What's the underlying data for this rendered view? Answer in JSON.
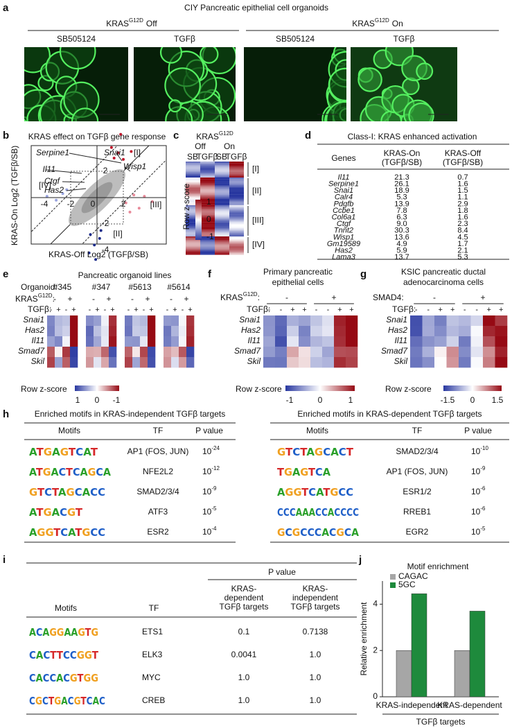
{
  "panel_labels": [
    "a",
    "b",
    "c",
    "d",
    "e",
    "f",
    "g",
    "h",
    "i",
    "j"
  ],
  "a": {
    "title": "CIY Pancreatic epithelial cell organoids",
    "groups": [
      {
        "name": "KRAS",
        "sup": "G12D",
        "state": "Off"
      },
      {
        "name": "KRAS",
        "sup": "G12D",
        "state": "On"
      }
    ],
    "conditions": [
      "SB505124",
      "TGFβ",
      "SB505124",
      "TGFβ"
    ]
  },
  "b": {
    "title": "KRAS effect on TGFβ gene response",
    "ylabel": "KRAS-On Log2 (TGFβ/SB)",
    "xlabel": "KRAS-Off Log2 (TGFβ/SB)",
    "xticks": [
      "-4",
      "-2",
      "0",
      "2"
    ],
    "yticks": [
      "2",
      "-2",
      "-4"
    ],
    "genes": [
      "Serpine1",
      "Snai1",
      "Wisp1",
      "Il11",
      "Ctgf",
      "Has2"
    ],
    "quadrants": [
      "[I]",
      "[II]",
      "[III]",
      "[IV]"
    ]
  },
  "c": {
    "header": {
      "name": "KRAS",
      "sup": "G12D"
    },
    "groups": [
      "Off",
      "On"
    ],
    "columns": [
      "SB",
      "TGFβ",
      "SB",
      "TGFβ"
    ],
    "clusters": [
      "[I]",
      "[II]",
      "[III]",
      "[IV]"
    ],
    "colorbar_label": "Row z-score",
    "colorbar_ticks": [
      "1",
      "0",
      "-1"
    ]
  },
  "d": {
    "title": "Class-I: KRAS enhanced activation",
    "headers": [
      [
        "Genes"
      ],
      [
        "KRAS-On",
        "(TGFβ/SB)"
      ],
      [
        "KRAS-Off",
        "(TGFβ/SB)"
      ]
    ],
    "rows": [
      [
        "Il11",
        "21.3",
        "0.7"
      ],
      [
        "Serpine1",
        "26.1",
        "1.6"
      ],
      [
        "Snai1",
        "18.9",
        "1.5"
      ],
      [
        "Calr4",
        "5.3",
        "1.1"
      ],
      [
        "Pdgfb",
        "13.9",
        "2.9"
      ],
      [
        "Ccbe1",
        "7.8",
        "1.8"
      ],
      [
        "Col6a1",
        "6.3",
        "1.6"
      ],
      [
        "Ctgf",
        "9.0",
        "2.3"
      ],
      [
        "Tnnt2",
        "30.3",
        "8.4"
      ],
      [
        "Wisp1",
        "13.6",
        "4.5"
      ],
      [
        "Gm19589",
        "4.9",
        "1.7"
      ],
      [
        "Has2",
        "5.9",
        "2.1"
      ],
      [
        "Lama3",
        "13.7",
        "5.3"
      ]
    ]
  },
  "e": {
    "title": "Pancreatic organoid lines",
    "organoid_label": "Organoid:",
    "organoids": [
      "#345",
      "#347",
      "#5613",
      "#5614"
    ],
    "kras_label": {
      "name": "KRAS",
      "sup": "G12D",
      "suffix": ":"
    },
    "kras_signs": [
      "-",
      "+",
      "-",
      "+",
      "-",
      "+",
      "-",
      "+"
    ],
    "tgfb_label": "TGFβ:",
    "tgfb_signs": [
      "-",
      "+",
      "-",
      "+",
      "-",
      "+",
      "-",
      "+",
      "-",
      "+",
      "-",
      "+",
      "-",
      "+",
      "-",
      "+"
    ],
    "genes": [
      "Snai1",
      "Has2",
      "Il11",
      "Smad7",
      "Skil"
    ],
    "colorbar_label": "Row z-score",
    "colorbar_ticks": [
      "1",
      "0",
      "-1"
    ]
  },
  "f": {
    "title": [
      "Primary pancreatic",
      "epithelial cells"
    ],
    "group_label": {
      "name": "KRAS",
      "sup": "G12D",
      "suffix": ":"
    },
    "group_signs": [
      "-",
      "+"
    ],
    "tgfb_label": "TGFβ:",
    "tgfb_signs": [
      "-",
      "-",
      "+",
      "+",
      "-",
      "-",
      "+",
      "+"
    ],
    "genes": [
      "Snai1",
      "Has2",
      "Il11",
      "Smad7",
      "Skil"
    ],
    "colorbar_label": "Row z-score",
    "colorbar_ticks": [
      "-1",
      "0",
      "1"
    ]
  },
  "g": {
    "title": [
      "KSIC pancreatic ductal",
      "adenocarcinoma cells"
    ],
    "group_label": "SMAD4:",
    "group_signs": [
      "-",
      "+"
    ],
    "tgfb_label": "TGFβ:",
    "tgfb_signs": [
      "-",
      "-",
      "+",
      "+",
      "-",
      "-",
      "+",
      "+"
    ],
    "genes": [
      "Snai1",
      "Has2",
      "Il11",
      "Smad7",
      "Skil"
    ],
    "colorbar_label": "Row z-score",
    "colorbar_ticks": [
      "-1.5",
      "0",
      "1.5"
    ]
  },
  "h": {
    "left": {
      "title": "Enriched motifs in KRAS-independent TGFβ targets",
      "headers": [
        "Motifs",
        "TF",
        "P value"
      ],
      "rows": [
        {
          "motif": "ATGAGTCAT",
          "tf": "AP1 (FOS, JUN)",
          "p": {
            "base": "10",
            "exponent": "-24"
          }
        },
        {
          "motif": "ATGACTCAGCA",
          "tf": "NFE2L2",
          "p": {
            "base": "10",
            "exponent": "-12"
          }
        },
        {
          "motif": "GTCTAGCACC",
          "tf": "SMAD2/3/4",
          "p": {
            "base": "10",
            "exponent": "-9"
          }
        },
        {
          "motif": "ATGACGT",
          "tf": "ATF3",
          "p": {
            "base": "10",
            "exponent": "-5"
          }
        },
        {
          "motif": "AGGTCATGCC",
          "tf": "ESR2",
          "p": {
            "base": "10",
            "exponent": "-4"
          }
        }
      ]
    },
    "right": {
      "title": "Enriched motifs in KRAS-dependent TGFβ targets",
      "headers": [
        "Motifs",
        "TF",
        "P value"
      ],
      "rows": [
        {
          "motif": "GTCTAGCACT",
          "tf": "SMAD2/3/4",
          "p": {
            "base": "10",
            "exponent": "-10"
          }
        },
        {
          "motif": "TGAGTCA",
          "tf": "AP1 (FOS, JUN)",
          "p": {
            "base": "10",
            "exponent": "-9"
          }
        },
        {
          "motif": "AGGTCATGCC",
          "tf": "ESR1/2",
          "p": {
            "base": "10",
            "exponent": "-6"
          }
        },
        {
          "motif": "CCCAAACCACCCC",
          "tf": "RREB1",
          "p": {
            "base": "10",
            "exponent": "-6"
          }
        },
        {
          "motif": "GCGCCCACGCA",
          "tf": "EGR2",
          "p": {
            "base": "10",
            "exponent": "-5"
          }
        }
      ]
    }
  },
  "i": {
    "group_header": "P value",
    "headers": [
      [
        "Motifs"
      ],
      [
        "TF"
      ],
      [
        "KRAS-",
        "dependent",
        "TGFβ targets"
      ],
      [
        "KRAS-",
        "independent",
        "TGFβ targets"
      ]
    ],
    "rows": [
      [
        "ACAGGAAGTG",
        "ETS1",
        "0.1",
        "0.7138"
      ],
      [
        "CACTTCCGGT",
        "ELK3",
        "0.0041",
        "1.0"
      ],
      [
        "CACCACGTGG",
        "MYC",
        "1.0",
        "1.0"
      ],
      [
        "CGCTGACGTCAC",
        "CREB",
        "1.0",
        "1.0"
      ]
    ]
  },
  "chart_data": {
    "type": "bar",
    "title": "Motif enrichment",
    "ylabel": "Relative enrichment",
    "xlabel": "TGFβ targets",
    "categories": [
      "KRAS-independent",
      "KRAS-dependent"
    ],
    "series": [
      {
        "name": "CAGAC",
        "color": "#a6a6a6",
        "values": [
          2,
          2
        ]
      },
      {
        "name": "5GC",
        "color": "#1e8a3c",
        "values": [
          4.45,
          3.7
        ]
      }
    ],
    "ylim": [
      0,
      5
    ],
    "yticks": [
      0,
      2,
      4
    ]
  }
}
